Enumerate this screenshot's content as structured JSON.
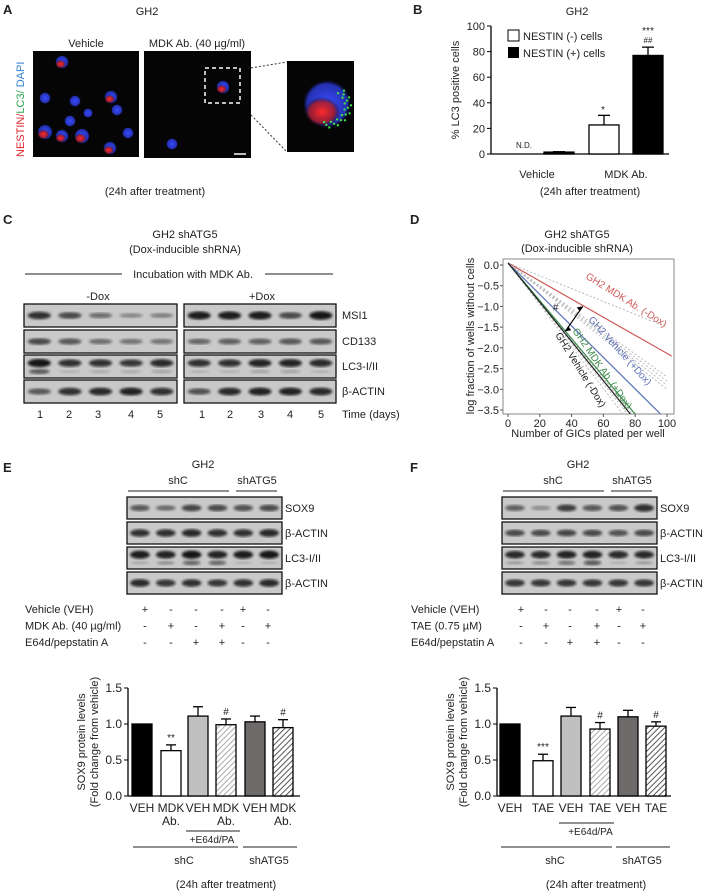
{
  "panel_letters": {
    "a": "A",
    "b": "B",
    "c": "C",
    "d": "D",
    "e": "E",
    "f": "F"
  },
  "panel_a": {
    "title": "GH2",
    "conditions": [
      "Vehicle",
      "MDK Ab. (40 µg/ml)"
    ],
    "stain": {
      "nestin": "NESTIN",
      "sep1": "/",
      "lc3": "LC3",
      "sep2": "/ ",
      "dapi": "DAPI"
    },
    "stain_colors": {
      "nestin": "#e0262f",
      "lc3": "#2fa84f",
      "dapi": "#2f7fd0"
    },
    "caption": "(24h after treatment)"
  },
  "panel_c": {
    "title_line1": "GH2 shATG5",
    "title_line2": "(Dox-inducible shRNA)",
    "incubation": "Incubation with MDK Ab.",
    "groups": [
      "-Dox",
      "+Dox"
    ],
    "rows": [
      "MSI1",
      "CD133",
      "LC3-I/II",
      "β-ACTIN"
    ],
    "lanes": [
      "1",
      "2",
      "3",
      "4",
      "5"
    ],
    "lanes_label": "Time (days)"
  },
  "panel_e_blot": {
    "title": "GH2",
    "groups": [
      "shC",
      "shATG5"
    ],
    "rows": [
      "SOX9",
      "β-ACTIN",
      "LC3-I/II",
      "β-ACTIN"
    ],
    "treatments": [
      {
        "label": "Vehicle (VEH)",
        "marks": [
          "+",
          "-",
          "-",
          "-",
          "+",
          "-"
        ]
      },
      {
        "label": "MDK Ab. (40 µg/ml)",
        "marks": [
          "-",
          "+",
          "-",
          "+",
          "-",
          "+"
        ]
      },
      {
        "label": "E64d/pepstatin A",
        "marks": [
          "-",
          "-",
          "+",
          "+",
          "-",
          "-"
        ]
      }
    ]
  },
  "panel_f_blot": {
    "title": "GH2",
    "groups": [
      "shC",
      "shATG5"
    ],
    "rows": [
      "SOX9",
      "β-ACTIN",
      "LC3-I/II",
      "β-ACTIN"
    ],
    "treatments": [
      {
        "label": "Vehicle (VEH)",
        "marks": [
          "+",
          "-",
          "-",
          "-",
          "+",
          "-"
        ]
      },
      {
        "label": "TAE (0.75 µM)",
        "marks": [
          "-",
          "+",
          "-",
          "+",
          "-",
          "+"
        ]
      },
      {
        "label": "E64d/pepstatin A",
        "marks": [
          "-",
          "-",
          "+",
          "+",
          "-",
          "-"
        ]
      }
    ]
  },
  "chart_data": [
    {
      "panel": "B",
      "type": "bar",
      "title": "GH2",
      "ylabel": "% LC3 positive cells",
      "xlabel": "",
      "categories": [
        "Vehicle",
        "MDK Ab."
      ],
      "series": [
        {
          "name": "NESTIN (-) cells",
          "color": "#ffffff",
          "values": [
            0,
            22.7
          ],
          "errors": [
            0,
            7.5
          ]
        },
        {
          "name": "NESTIN (+) cells",
          "color": "#000000",
          "values": [
            1.5,
            77
          ],
          "errors": [
            0.3,
            6.5
          ]
        }
      ],
      "annotations": {
        "vehicle_nestin_neg": "N.D.",
        "mdk_nestin_neg": "*",
        "mdk_nestin_pos_1": "***",
        "mdk_nestin_pos_2": "##"
      },
      "ylim": [
        0,
        100
      ],
      "yticks": [
        "0",
        "20",
        "40",
        "60",
        "80",
        "100"
      ],
      "legend": "top-left",
      "caption": "(24h after treatment)"
    },
    {
      "panel": "D",
      "type": "line",
      "title_line1": "GH2 shATG5",
      "title_line2": "(Dox-inducible shRNA)",
      "xlabel": "Number of GICs plated per well",
      "ylabel": "log fraction of  wells without cells",
      "xlim": [
        -3,
        103
      ],
      "ylim": [
        -3.6,
        0.1
      ],
      "xticks": [
        "0",
        "20",
        "40",
        "60",
        "80",
        "100"
      ],
      "yticks": [
        "0.0",
        "−0.5",
        "−1.0",
        "−1.5",
        "−2.0",
        "−2.5",
        "−3.0",
        "−3.5"
      ],
      "series": [
        {
          "name": "GH2 MDK Ab. (-Dox)",
          "color": "#d05a5a",
          "x": [
            0,
            103
          ],
          "y": [
            0.05,
            -2.2
          ],
          "ci_y_end": [
            -1.5,
            -3.0
          ]
        },
        {
          "name": "GH2 Vehicle (+Dox)",
          "color": "#5a6fb5",
          "x": [
            0,
            96
          ],
          "y": [
            0.05,
            -3.6
          ],
          "ci_y_end": [
            -2.7,
            -5.0
          ]
        },
        {
          "name": "GH2 MDK Ab. (+Dox)",
          "color": "#3a8a4a",
          "x": [
            0,
            80
          ],
          "y": [
            0.05,
            -3.6
          ],
          "ci_y_end": [
            -2.8,
            -4.6
          ]
        },
        {
          "name": "GH2 Vehicle (-Dox)",
          "color": "#222222",
          "x": [
            0,
            77
          ],
          "y": [
            0.05,
            -3.6
          ],
          "ci_y_end": [
            -2.9,
            -4.8
          ]
        }
      ],
      "annotation": "#"
    },
    {
      "panel": "E",
      "type": "bar",
      "ylabel_line1": "SOX9 protein levels",
      "ylabel_line2": "(Fold change from vehicle)",
      "categories": [
        [
          "VEH"
        ],
        [
          "MDK",
          "Ab."
        ],
        [
          "VEH"
        ],
        [
          "MDK",
          "Ab."
        ],
        [
          "VEH"
        ],
        [
          "MDK",
          "Ab."
        ]
      ],
      "values": [
        1.0,
        0.63,
        1.11,
        0.99,
        1.03,
        0.95
      ],
      "errors": [
        0,
        0.08,
        0.13,
        0.08,
        0.08,
        0.11
      ],
      "fills": [
        "black",
        "white",
        "lightgray",
        "hatch-light",
        "darkgray",
        "hatch-dark"
      ],
      "significance": [
        "",
        "**",
        "",
        "#",
        "",
        "#"
      ],
      "ylim": [
        0,
        1.5
      ],
      "yticks": [
        "0.0",
        "0.5",
        "1.0",
        "1.5"
      ],
      "subgroup": "+E64d/PA",
      "groups": [
        "shC",
        "shATG5"
      ],
      "caption": "(24h after treatment)"
    },
    {
      "panel": "F",
      "type": "bar",
      "ylabel_line1": "SOX9 protein levels",
      "ylabel_line2": "(Fold change from vehicle)",
      "categories": [
        [
          "VEH"
        ],
        [
          "TAE"
        ],
        [
          "VEH"
        ],
        [
          "TAE"
        ],
        [
          "VEH"
        ],
        [
          "TAE"
        ]
      ],
      "values": [
        1.0,
        0.49,
        1.11,
        0.93,
        1.1,
        0.97
      ],
      "errors": [
        0,
        0.09,
        0.12,
        0.09,
        0.09,
        0.06
      ],
      "fills": [
        "black",
        "white",
        "lightgray",
        "hatch-light",
        "darkgray",
        "hatch-dark"
      ],
      "significance": [
        "",
        "***",
        "",
        "#",
        "",
        "#"
      ],
      "ylim": [
        0,
        1.5
      ],
      "yticks": [
        "0.0",
        "0.5",
        "1.0",
        "1.5"
      ],
      "subgroup": "+E64d/PA",
      "groups": [
        "shC",
        "shATG5"
      ],
      "caption": "(24h after treatment)"
    }
  ]
}
